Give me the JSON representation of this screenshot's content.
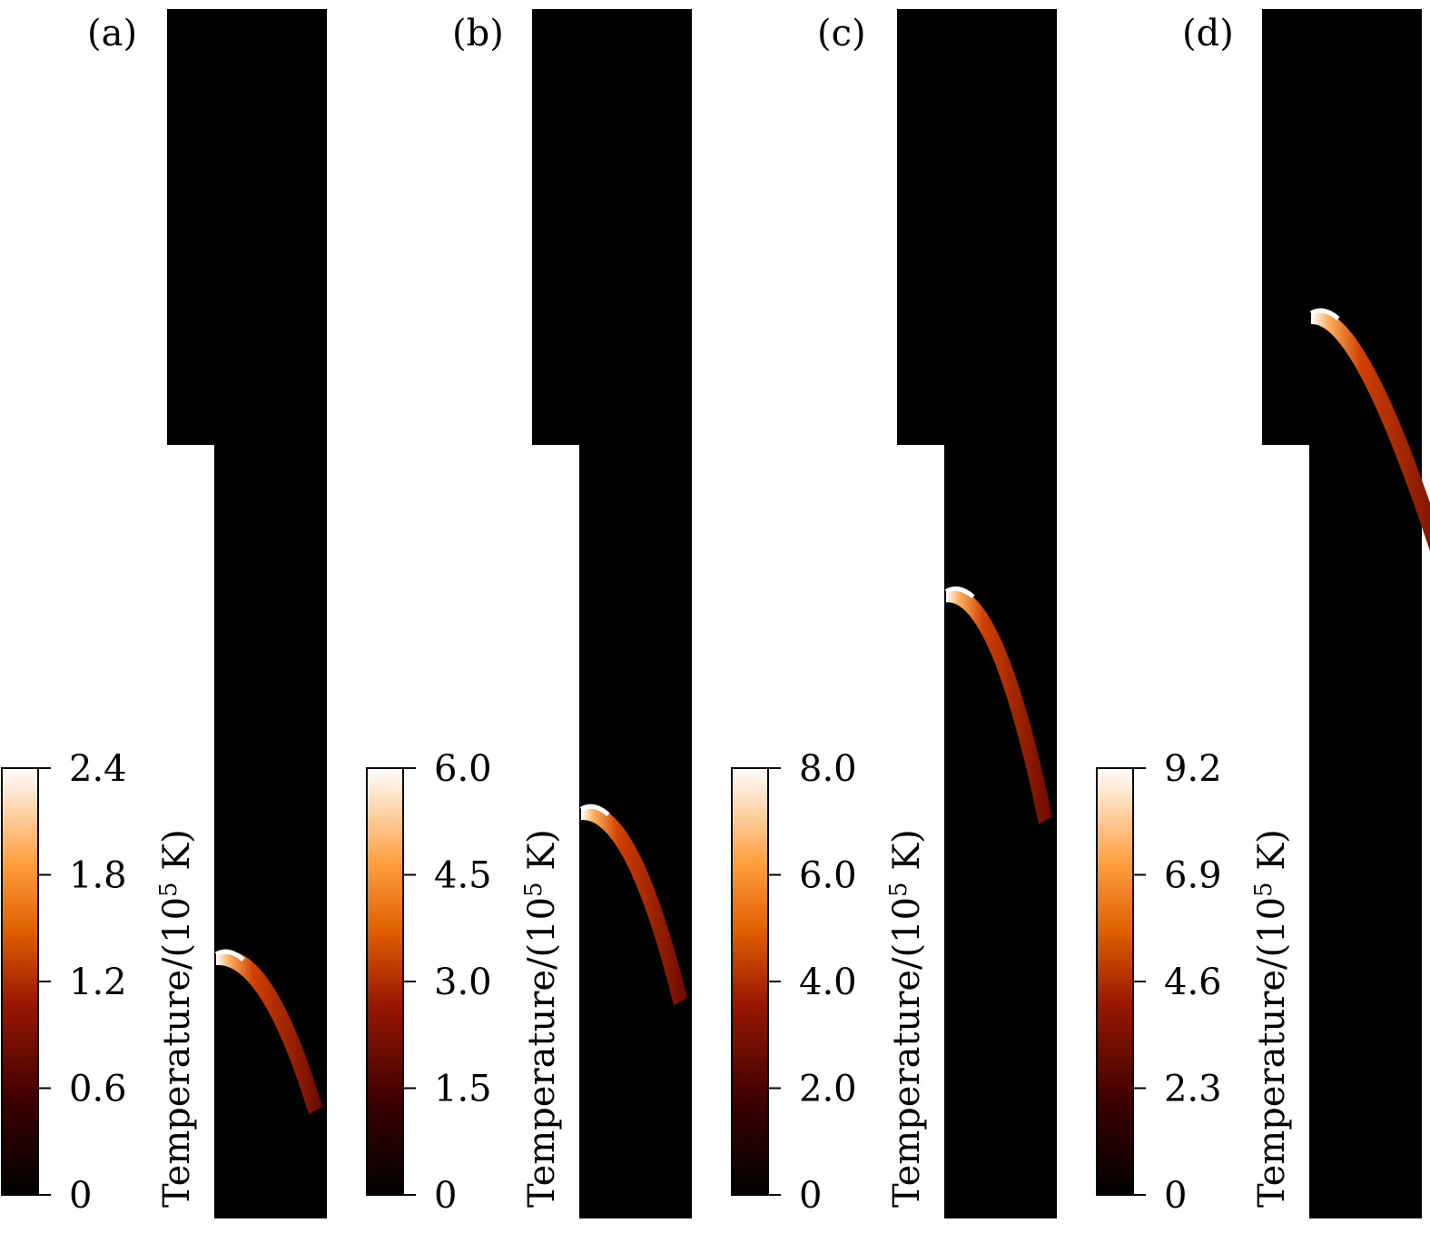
{
  "chart_data": [
    {
      "type": "heatmap",
      "panel_label": "(a)",
      "colorbar": {
        "label_main": "Temperature/(10",
        "label_exp": "5",
        "label_unit": " K)",
        "ticks": [
          "0",
          "0.6",
          "1.2",
          "1.8",
          "2.4"
        ],
        "range": [
          0,
          2.4
        ]
      },
      "front": {
        "peak_y_fraction": 0.78
      }
    },
    {
      "type": "heatmap",
      "panel_label": "(b)",
      "colorbar": {
        "label_main": "Temperature/(10",
        "label_exp": "5",
        "label_unit": " K)",
        "ticks": [
          "0",
          "1.5",
          "3.0",
          "4.5",
          "6.0"
        ],
        "range": [
          0,
          6.0
        ]
      },
      "front": {
        "peak_y_fraction": 0.66
      }
    },
    {
      "type": "heatmap",
      "panel_label": "(c)",
      "colorbar": {
        "label_main": "Temperature/(10",
        "label_exp": "5",
        "label_unit": " K)",
        "ticks": [
          "0",
          "2.0",
          "4.0",
          "6.0",
          "8.0"
        ],
        "range": [
          0,
          8.0
        ]
      },
      "front": {
        "peak_y_fraction": 0.48
      }
    },
    {
      "type": "heatmap",
      "panel_label": "(d)",
      "colorbar": {
        "label_main": "Temperature/(10",
        "label_exp": "5",
        "label_unit": " K)",
        "ticks": [
          "0",
          "2.3",
          "4.6",
          "6.9",
          "9.2"
        ],
        "range": [
          0,
          9.2
        ]
      },
      "front": {
        "peak_y_fraction": 0.25
      }
    }
  ],
  "colors": {
    "background": "#000000",
    "colormap": [
      "#000000",
      "#5a0000",
      "#b33000",
      "#ff8c1a",
      "#ffffff"
    ]
  }
}
